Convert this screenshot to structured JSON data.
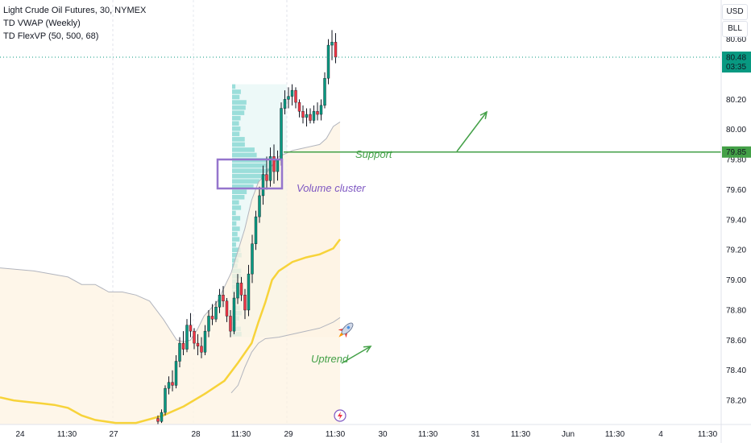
{
  "legend": {
    "title": "Light Crude Oil Futures, 30, NYMEX",
    "indicator_1": "TD VWAP (Weekly)",
    "indicator_2": "TD FlexVP (50, 500, 68)"
  },
  "toolbar": {
    "currency_label": "USD",
    "unit_label": "BLL"
  },
  "colors": {
    "up": "#089981",
    "down": "#f23645",
    "candle_dark": "#131722",
    "vwap": "#f7d33a",
    "band": "#b2b5be",
    "volume_profile": "#7fd4d0",
    "support": "#43a047",
    "cluster_box": "#9575cd",
    "annotation_green": "#43a047",
    "annotation_purple": "#7e57c2"
  },
  "annotations": {
    "support_label": "Support",
    "cluster_label": "Volume cluster",
    "uptrend_label": "Uptrend",
    "rocket_icon": "rocket-icon",
    "lightning_icon": "lightning-icon"
  },
  "chart_data": {
    "type": "candlestick",
    "title": "Light Crude Oil Futures, 30, NYMEX",
    "price_axis_ticks": [
      "80.60",
      "80.40",
      "80.20",
      "80.00",
      "79.80",
      "79.60",
      "79.40",
      "79.20",
      "79.00",
      "78.80",
      "78.60",
      "78.40",
      "78.20"
    ],
    "time_axis_ticks": [
      "24",
      "11:30",
      "27",
      "28",
      "11:30",
      "29",
      "11:30",
      "30",
      "11:30",
      "31",
      "11:30",
      "Jun",
      "11:30",
      "4",
      "11:30"
    ],
    "ylim": [
      78.04,
      80.86
    ],
    "last_price": "80.48",
    "countdown": "03:35",
    "support_price": "79.85",
    "vwap_line": [
      [
        0,
        78.22
      ],
      [
        2,
        78.2
      ],
      [
        4,
        78.19
      ],
      [
        6,
        78.18
      ],
      [
        8,
        78.17
      ],
      [
        10,
        78.15
      ],
      [
        12,
        78.1
      ],
      [
        14,
        78.07
      ],
      [
        17,
        78.05
      ],
      [
        20,
        78.05
      ],
      [
        24,
        78.1
      ],
      [
        27,
        78.16
      ],
      [
        30,
        78.24
      ],
      [
        33,
        78.33
      ],
      [
        35,
        78.45
      ],
      [
        37,
        78.58
      ],
      [
        38,
        78.72
      ],
      [
        39,
        78.85
      ],
      [
        40,
        79.0
      ],
      [
        41,
        79.06
      ],
      [
        43,
        79.12
      ],
      [
        45,
        79.15
      ],
      [
        47,
        79.17
      ],
      [
        49,
        79.21
      ],
      [
        50,
        79.27
      ]
    ],
    "upper_band": [
      [
        0,
        79.08
      ],
      [
        5,
        79.06
      ],
      [
        10,
        79.02
      ],
      [
        12,
        78.97
      ],
      [
        14,
        78.97
      ],
      [
        16,
        78.92
      ],
      [
        18,
        78.92
      ],
      [
        20,
        78.9
      ],
      [
        22,
        78.86
      ],
      [
        24,
        78.74
      ],
      [
        26,
        78.6
      ],
      [
        27,
        78.59
      ],
      [
        28,
        78.6
      ],
      [
        29,
        78.67
      ],
      [
        30,
        78.76
      ],
      [
        32,
        78.86
      ],
      [
        34,
        79.05
      ],
      [
        36,
        79.34
      ],
      [
        37,
        79.53
      ],
      [
        38,
        79.65
      ],
      [
        39,
        79.7
      ],
      [
        40,
        79.76
      ],
      [
        41,
        79.82
      ],
      [
        43,
        79.86
      ],
      [
        45,
        79.88
      ],
      [
        47,
        79.9
      ],
      [
        48,
        79.94
      ],
      [
        49,
        80.02
      ],
      [
        50,
        80.05
      ]
    ],
    "lower_band": [
      [
        34,
        78.25
      ],
      [
        35,
        78.3
      ],
      [
        36,
        78.42
      ],
      [
        37,
        78.52
      ],
      [
        38,
        78.58
      ],
      [
        39,
        78.61
      ],
      [
        41,
        78.62
      ],
      [
        43,
        78.64
      ],
      [
        45,
        78.66
      ],
      [
        47,
        78.68
      ],
      [
        49,
        78.72
      ],
      [
        50,
        78.75
      ]
    ],
    "volume_profile": {
      "price_low": 78.62,
      "price_high": 80.3,
      "poc_price": 79.74
    },
    "candles": [
      [
        78.08,
        78.1,
        78.04,
        78.06
      ],
      [
        78.06,
        78.14,
        78.05,
        78.12
      ],
      [
        78.12,
        78.3,
        78.1,
        78.28
      ],
      [
        78.28,
        78.36,
        78.24,
        78.32
      ],
      [
        78.32,
        78.4,
        78.26,
        78.3
      ],
      [
        78.3,
        78.5,
        78.28,
        78.46
      ],
      [
        78.46,
        78.62,
        78.42,
        78.58
      ],
      [
        78.58,
        78.66,
        78.5,
        78.54
      ],
      [
        78.54,
        78.74,
        78.52,
        78.7
      ],
      [
        78.7,
        78.78,
        78.62,
        78.66
      ],
      [
        78.66,
        78.68,
        78.54,
        78.58
      ],
      [
        78.58,
        78.64,
        78.5,
        78.56
      ],
      [
        78.56,
        78.62,
        78.48,
        78.52
      ],
      [
        78.52,
        78.7,
        78.5,
        78.66
      ],
      [
        78.66,
        78.8,
        78.62,
        78.76
      ],
      [
        78.76,
        78.84,
        78.7,
        78.74
      ],
      [
        78.74,
        78.86,
        78.72,
        78.82
      ],
      [
        78.82,
        78.94,
        78.78,
        78.9
      ],
      [
        78.9,
        78.96,
        78.82,
        78.86
      ],
      [
        78.86,
        78.88,
        78.72,
        78.76
      ],
      [
        78.76,
        78.8,
        78.62,
        78.66
      ],
      [
        78.66,
        78.92,
        78.64,
        78.88
      ],
      [
        78.88,
        79.04,
        78.84,
        78.98
      ],
      [
        78.98,
        79.02,
        78.86,
        78.9
      ],
      [
        78.9,
        78.94,
        78.74,
        78.8
      ],
      [
        78.8,
        79.1,
        78.76,
        79.04
      ],
      [
        79.04,
        79.3,
        78.98,
        79.24
      ],
      [
        79.24,
        79.46,
        79.2,
        79.42
      ],
      [
        79.42,
        79.62,
        79.38,
        79.56
      ],
      [
        79.56,
        79.76,
        79.5,
        79.7
      ],
      [
        79.7,
        79.82,
        79.6,
        79.66
      ],
      [
        79.66,
        79.88,
        79.62,
        79.82
      ],
      [
        79.82,
        79.9,
        79.64,
        79.72
      ],
      [
        79.72,
        79.86,
        79.66,
        79.8
      ],
      [
        79.8,
        80.18,
        79.76,
        80.14
      ],
      [
        80.14,
        80.26,
        80.1,
        80.2
      ],
      [
        80.2,
        80.28,
        80.14,
        80.22
      ],
      [
        80.22,
        80.3,
        80.16,
        80.26
      ],
      [
        80.26,
        80.28,
        80.14,
        80.18
      ],
      [
        80.18,
        80.2,
        80.08,
        80.12
      ],
      [
        80.12,
        80.16,
        80.04,
        80.08
      ],
      [
        80.08,
        80.14,
        80.02,
        80.1
      ],
      [
        80.1,
        80.14,
        80.04,
        80.06
      ],
      [
        80.06,
        80.16,
        80.04,
        80.12
      ],
      [
        80.12,
        80.18,
        80.06,
        80.1
      ],
      [
        80.1,
        80.2,
        80.06,
        80.16
      ],
      [
        80.16,
        80.38,
        80.14,
        80.34
      ],
      [
        80.34,
        80.6,
        80.3,
        80.56
      ],
      [
        80.56,
        80.66,
        80.46,
        80.58
      ],
      [
        80.58,
        80.64,
        80.44,
        80.48
      ]
    ]
  }
}
